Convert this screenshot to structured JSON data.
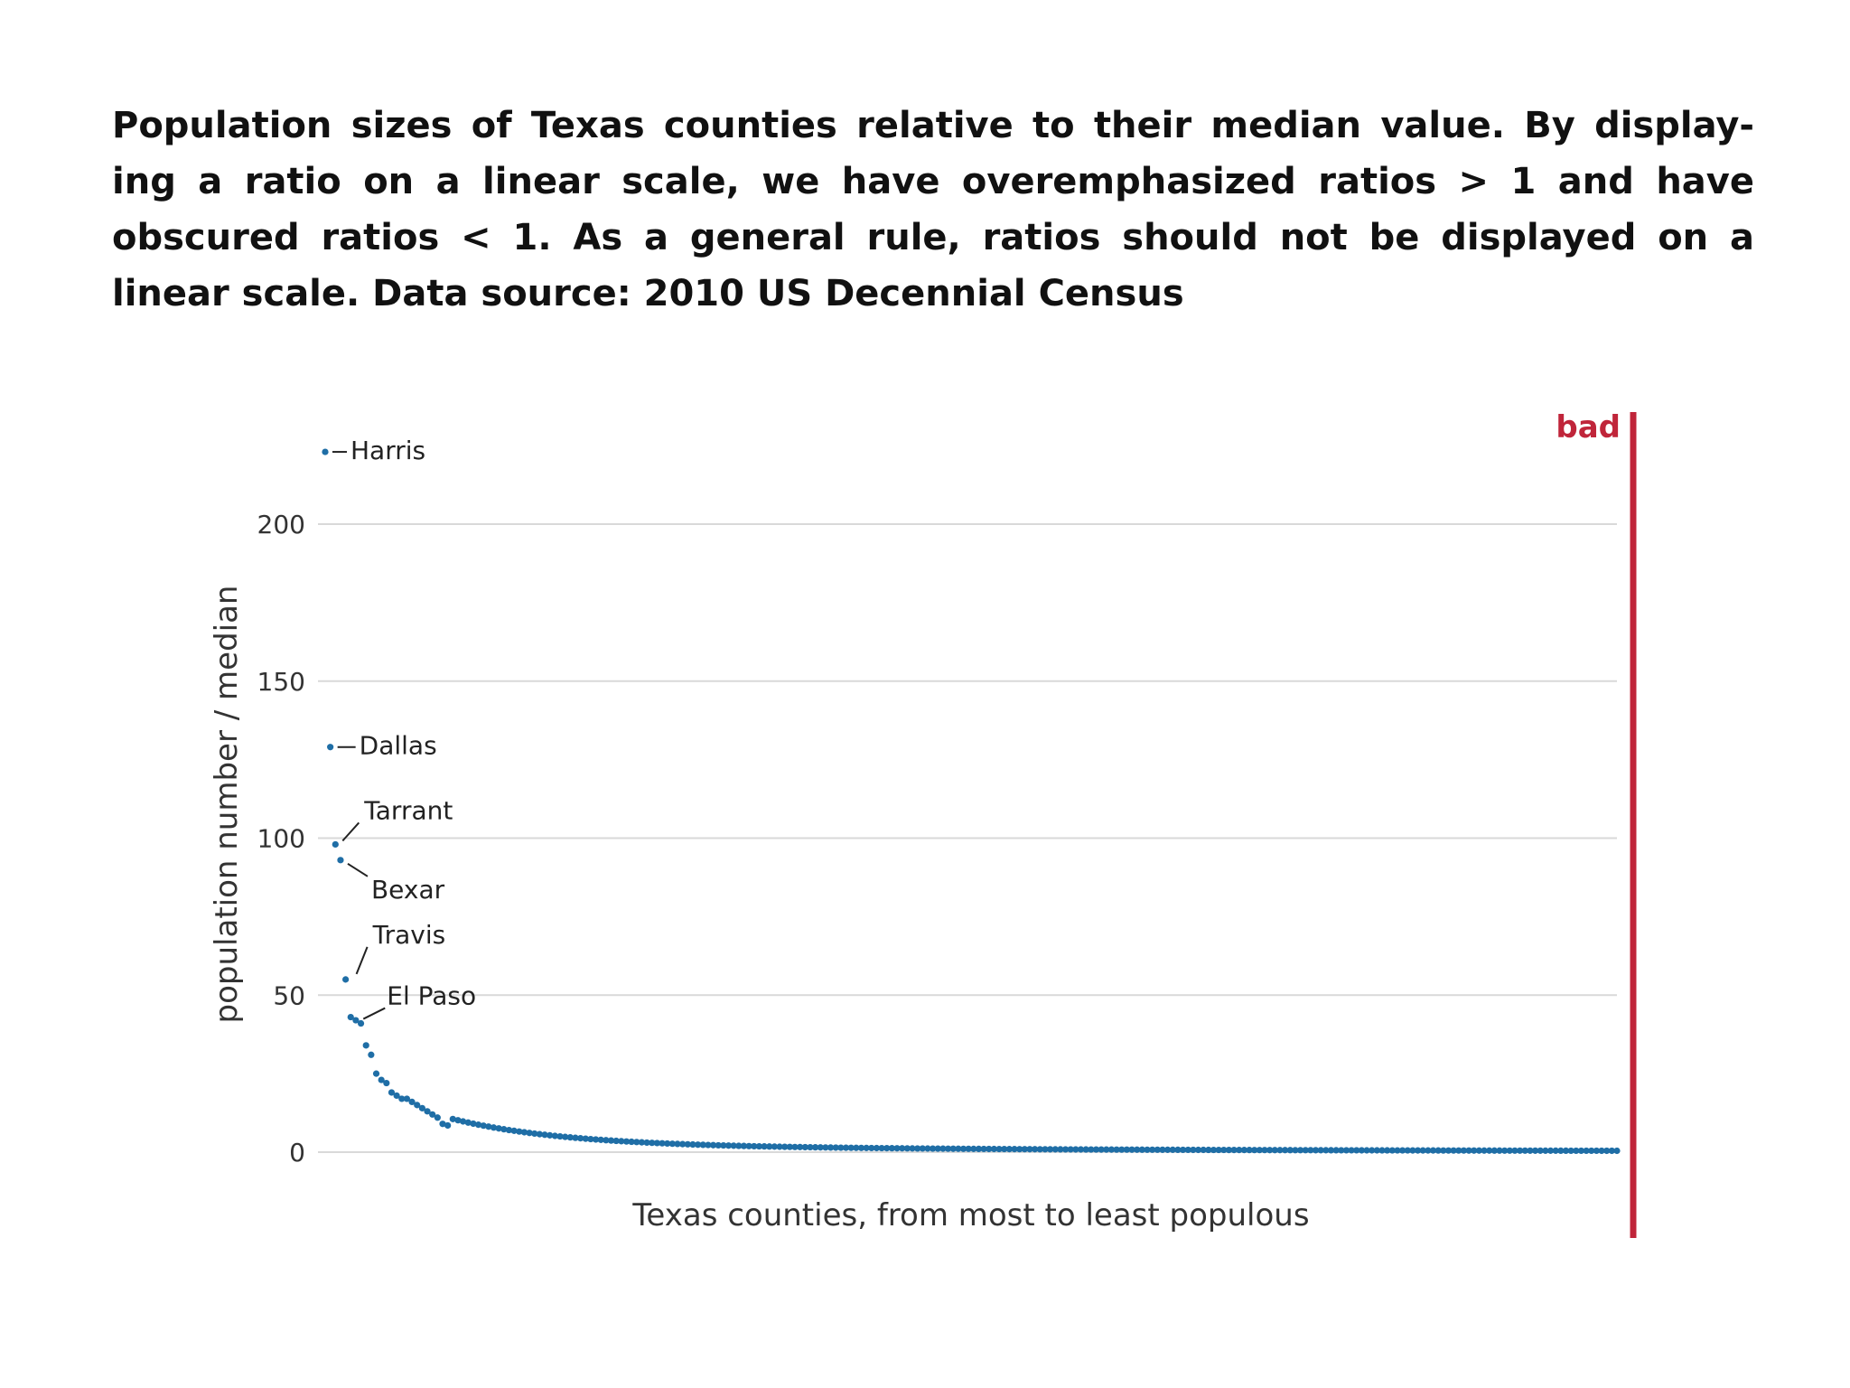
{
  "caption": "Population sizes of Texas counties relative to their median value. By display‐ ing a ratio on a linear scale, we have overemphasized ratios > 1 and have obscured ratios < 1. As a general rule, ratios should not be displayed on a linear scale. Data source: 2010 US Decennial Census",
  "colors": {
    "points": "#1f6ea6",
    "bad": "#c0253a",
    "grid": "#d9d9d9"
  },
  "chart_data": {
    "type": "scatter",
    "xlabel": "Texas counties, from most to least populous",
    "ylabel": "population number / median",
    "ylim": [
      0,
      225
    ],
    "yticks": [
      0,
      50,
      100,
      150,
      200
    ],
    "grid": true,
    "badge": "bad",
    "n_counties": 254,
    "values_top": [
      223,
      129,
      98,
      93,
      55,
      43,
      42,
      41,
      34,
      31,
      25,
      23,
      22,
      19,
      18,
      17,
      17,
      16,
      15,
      14,
      13,
      12,
      11,
      9,
      8.5
    ],
    "annotations": [
      {
        "label": "Harris",
        "index": 0,
        "value": 223
      },
      {
        "label": "Dallas",
        "index": 1,
        "value": 129
      },
      {
        "label": "Tarrant",
        "index": 2,
        "value": 98
      },
      {
        "label": "Bexar",
        "index": 3,
        "value": 93
      },
      {
        "label": "Travis",
        "index": 4,
        "value": 55
      },
      {
        "label": "El Paso",
        "index": 5,
        "value": 43
      }
    ]
  }
}
